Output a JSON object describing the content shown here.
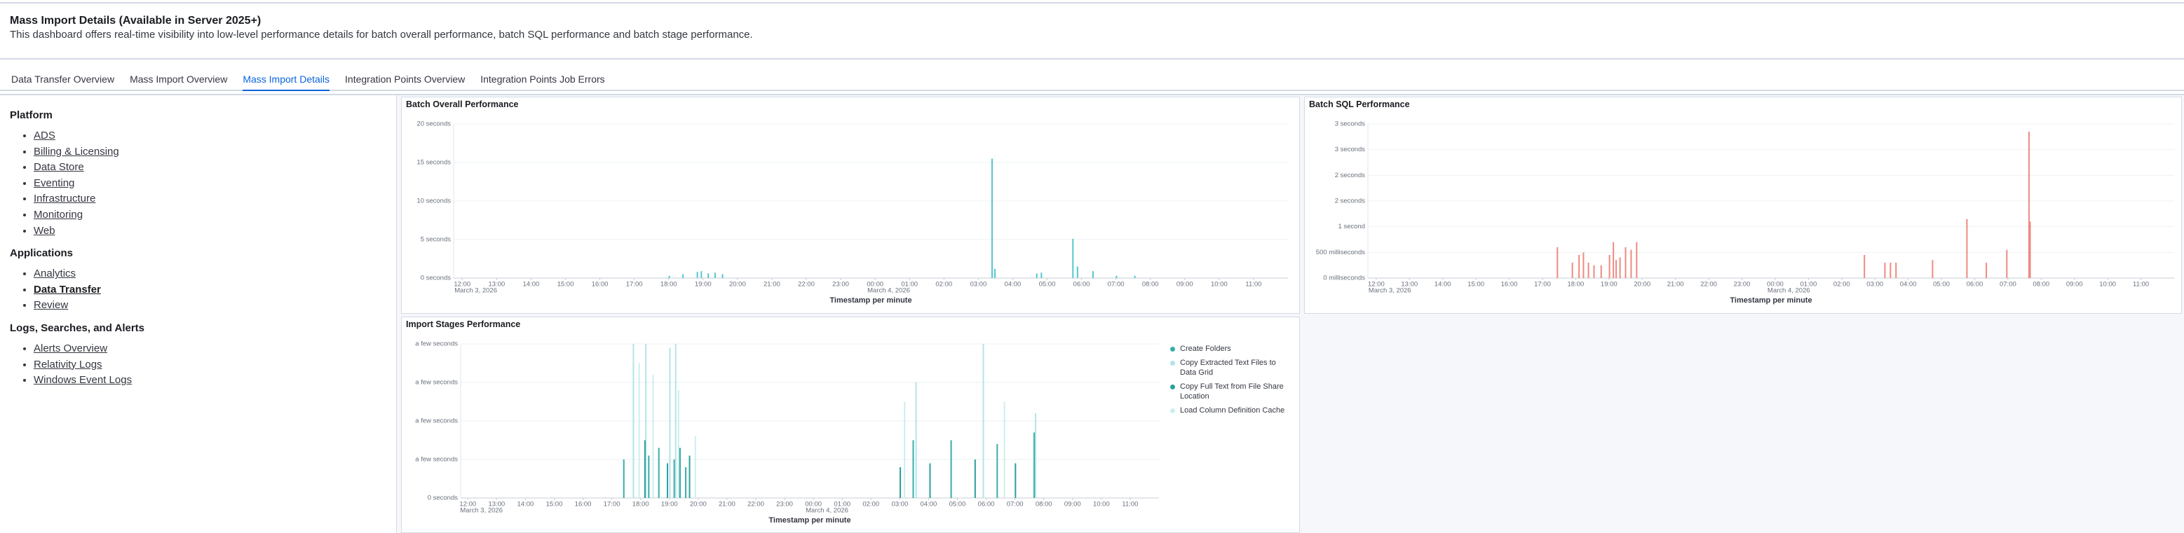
{
  "header": {
    "title": "Mass Import Details (Available in Server 2025+)",
    "description": "This dashboard offers real-time visibility into low-level performance details for batch overall performance, batch SQL performance and batch stage performance."
  },
  "tabs": {
    "items": [
      "Data Transfer Overview",
      "Mass Import Overview",
      "Mass Import Details",
      "Integration Points Overview",
      "Integration Points Job Errors"
    ],
    "active": 2
  },
  "sidebar": {
    "sections": [
      {
        "heading": "Platform",
        "links": [
          "ADS",
          "Billing & Licensing",
          "Data Store",
          "Eventing",
          "Infrastructure",
          "Monitoring",
          "Web"
        ]
      },
      {
        "heading": "Applications",
        "links": [
          "Analytics",
          "Data Transfer",
          "Review"
        ],
        "current": 1
      },
      {
        "heading": "Logs, Searches, and Alerts",
        "links": [
          "Alerts Overview",
          "Relativity Logs",
          "Windows Event Logs"
        ]
      }
    ]
  },
  "chart_data": [
    {
      "type": "bar",
      "title": "Batch Overall Performance",
      "x_label": "Timestamp per minute",
      "xlim": [
        "2026-03-03T11:45",
        "2026-03-04T12:00"
      ],
      "xticks": [
        {
          "value": "2026-03-03T12:00",
          "label": "12:00"
        },
        {
          "value": "2026-03-03T13:00",
          "label": "13:00"
        },
        {
          "value": "2026-03-03T14:00",
          "label": "14:00"
        },
        {
          "value": "2026-03-03T15:00",
          "label": "15:00"
        },
        {
          "value": "2026-03-03T16:00",
          "label": "16:00"
        },
        {
          "value": "2026-03-03T17:00",
          "label": "17:00"
        },
        {
          "value": "2026-03-03T18:00",
          "label": "18:00"
        },
        {
          "value": "2026-03-03T19:00",
          "label": "19:00"
        },
        {
          "value": "2026-03-03T20:00",
          "label": "20:00"
        },
        {
          "value": "2026-03-03T21:00",
          "label": "21:00"
        },
        {
          "value": "2026-03-03T22:00",
          "label": "22:00"
        },
        {
          "value": "2026-03-03T23:00",
          "label": "23:00"
        },
        {
          "value": "2026-03-04T00:00",
          "label": "00:00"
        },
        {
          "value": "2026-03-04T01:00",
          "label": "01:00"
        },
        {
          "value": "2026-03-04T02:00",
          "label": "02:00"
        },
        {
          "value": "2026-03-04T03:00",
          "label": "03:00"
        },
        {
          "value": "2026-03-04T04:00",
          "label": "04:00"
        },
        {
          "value": "2026-03-04T05:00",
          "label": "05:00"
        },
        {
          "value": "2026-03-04T06:00",
          "label": "06:00"
        },
        {
          "value": "2026-03-04T07:00",
          "label": "07:00"
        },
        {
          "value": "2026-03-04T08:00",
          "label": "08:00"
        },
        {
          "value": "2026-03-04T09:00",
          "label": "09:00"
        },
        {
          "value": "2026-03-04T10:00",
          "label": "10:00"
        },
        {
          "value": "2026-03-04T11:00",
          "label": "11:00"
        }
      ],
      "date_labels": [
        {
          "value": "2026-03-03T12:00",
          "label": "March 3, 2026"
        },
        {
          "value": "2026-03-04T00:00",
          "label": "March 4, 2026"
        }
      ],
      "ylim": [
        0,
        20
      ],
      "yticks": [
        {
          "value": 20,
          "label": "20 seconds"
        },
        {
          "value": 15,
          "label": "15 seconds"
        },
        {
          "value": 10,
          "label": "10 seconds"
        },
        {
          "value": 5,
          "label": "5 seconds"
        },
        {
          "value": 0,
          "label": "0 seconds"
        }
      ],
      "grid": true,
      "series": [
        {
          "color": "#54c7d1",
          "x": [
            "2026-03-03T18:01",
            "2026-03-03T18:25",
            "2026-03-03T18:50",
            "2026-03-03T18:57",
            "2026-03-03T19:09",
            "2026-03-03T19:21",
            "2026-03-03T19:34",
            "2026-03-04T03:24",
            "2026-03-04T03:29",
            "2026-03-04T04:42",
            "2026-03-04T04:50",
            "2026-03-04T05:45",
            "2026-03-04T05:53",
            "2026-03-04T06:20",
            "2026-03-04T07:01",
            "2026-03-04T07:33"
          ],
          "values": [
            0.3,
            0.5,
            0.8,
            0.9,
            0.6,
            0.7,
            0.5,
            15.5,
            1.2,
            0.6,
            0.7,
            5.1,
            1.5,
            0.9,
            0.3,
            0.3
          ]
        }
      ]
    },
    {
      "type": "bar",
      "title": "Batch SQL Performance",
      "x_label": "Timestamp per minute",
      "xlim": [
        "2026-03-03T11:45",
        "2026-03-04T12:00"
      ],
      "xticks": [
        {
          "value": "2026-03-03T12:00",
          "label": "12:00"
        },
        {
          "value": "2026-03-03T13:00",
          "label": "13:00"
        },
        {
          "value": "2026-03-03T14:00",
          "label": "14:00"
        },
        {
          "value": "2026-03-03T15:00",
          "label": "15:00"
        },
        {
          "value": "2026-03-03T16:00",
          "label": "16:00"
        },
        {
          "value": "2026-03-03T17:00",
          "label": "17:00"
        },
        {
          "value": "2026-03-03T18:00",
          "label": "18:00"
        },
        {
          "value": "2026-03-03T19:00",
          "label": "19:00"
        },
        {
          "value": "2026-03-03T20:00",
          "label": "20:00"
        },
        {
          "value": "2026-03-03T21:00",
          "label": "21:00"
        },
        {
          "value": "2026-03-03T22:00",
          "label": "22:00"
        },
        {
          "value": "2026-03-03T23:00",
          "label": "23:00"
        },
        {
          "value": "2026-03-04T00:00",
          "label": "00:00"
        },
        {
          "value": "2026-03-04T01:00",
          "label": "01:00"
        },
        {
          "value": "2026-03-04T02:00",
          "label": "02:00"
        },
        {
          "value": "2026-03-04T03:00",
          "label": "03:00"
        },
        {
          "value": "2026-03-04T04:00",
          "label": "04:00"
        },
        {
          "value": "2026-03-04T05:00",
          "label": "05:00"
        },
        {
          "value": "2026-03-04T06:00",
          "label": "06:00"
        },
        {
          "value": "2026-03-04T07:00",
          "label": "07:00"
        },
        {
          "value": "2026-03-04T08:00",
          "label": "08:00"
        },
        {
          "value": "2026-03-04T09:00",
          "label": "09:00"
        },
        {
          "value": "2026-03-04T10:00",
          "label": "10:00"
        },
        {
          "value": "2026-03-04T11:00",
          "label": "11:00"
        }
      ],
      "date_labels": [
        {
          "value": "2026-03-03T12:00",
          "label": "March 3, 2026"
        },
        {
          "value": "2026-03-04T00:00",
          "label": "March 4, 2026"
        }
      ],
      "ylim": [
        0,
        3
      ],
      "yticks": [
        {
          "value": 3,
          "label": "3 seconds"
        },
        {
          "value": 2.5,
          "label": "3 seconds"
        },
        {
          "value": 2,
          "label": "2 seconds"
        },
        {
          "value": 1.5,
          "label": "2 seconds"
        },
        {
          "value": 1,
          "label": "1 second"
        },
        {
          "value": 0.5,
          "label": "500 milliseconds"
        },
        {
          "value": 0,
          "label": "0 milliseconds"
        }
      ],
      "grid": true,
      "series": [
        {
          "color": "#ee8a80",
          "x": [
            "2026-03-03T17:27",
            "2026-03-03T17:54",
            "2026-03-03T18:06",
            "2026-03-03T18:14",
            "2026-03-03T18:23",
            "2026-03-03T18:33",
            "2026-03-03T18:46",
            "2026-03-03T19:01",
            "2026-03-03T19:08",
            "2026-03-03T19:13",
            "2026-03-03T19:20",
            "2026-03-03T19:30",
            "2026-03-03T19:40",
            "2026-03-03T19:50",
            "2026-03-04T02:41",
            "2026-03-04T03:18",
            "2026-03-04T03:28",
            "2026-03-04T03:38",
            "2026-03-04T04:44",
            "2026-03-04T05:46",
            "2026-03-04T06:21",
            "2026-03-04T06:58",
            "2026-03-04T07:38",
            "2026-03-04T07:40"
          ],
          "values": [
            0.6,
            0.3,
            0.45,
            0.5,
            0.3,
            0.25,
            0.25,
            0.45,
            0.7,
            0.35,
            0.4,
            0.6,
            0.55,
            0.7,
            0.45,
            0.3,
            0.3,
            0.3,
            0.35,
            1.15,
            0.3,
            0.55,
            2.85,
            1.1
          ]
        }
      ]
    },
    {
      "type": "bar",
      "title": "Import Stages Performance",
      "x_label": "Timestamp per minute",
      "xlim": [
        "2026-03-03T11:45",
        "2026-03-04T12:00"
      ],
      "xticks": [
        {
          "value": "2026-03-03T12:00",
          "label": "12:00"
        },
        {
          "value": "2026-03-03T13:00",
          "label": "13:00"
        },
        {
          "value": "2026-03-03T14:00",
          "label": "14:00"
        },
        {
          "value": "2026-03-03T15:00",
          "label": "15:00"
        },
        {
          "value": "2026-03-03T16:00",
          "label": "16:00"
        },
        {
          "value": "2026-03-03T17:00",
          "label": "17:00"
        },
        {
          "value": "2026-03-03T18:00",
          "label": "18:00"
        },
        {
          "value": "2026-03-03T19:00",
          "label": "19:00"
        },
        {
          "value": "2026-03-03T20:00",
          "label": "20:00"
        },
        {
          "value": "2026-03-03T21:00",
          "label": "21:00"
        },
        {
          "value": "2026-03-03T22:00",
          "label": "22:00"
        },
        {
          "value": "2026-03-03T23:00",
          "label": "23:00"
        },
        {
          "value": "2026-03-04T00:00",
          "label": "00:00"
        },
        {
          "value": "2026-03-04T01:00",
          "label": "01:00"
        },
        {
          "value": "2026-03-04T02:00",
          "label": "02:00"
        },
        {
          "value": "2026-03-04T03:00",
          "label": "03:00"
        },
        {
          "value": "2026-03-04T04:00",
          "label": "04:00"
        },
        {
          "value": "2026-03-04T05:00",
          "label": "05:00"
        },
        {
          "value": "2026-03-04T06:00",
          "label": "06:00"
        },
        {
          "value": "2026-03-04T07:00",
          "label": "07:00"
        },
        {
          "value": "2026-03-04T08:00",
          "label": "08:00"
        },
        {
          "value": "2026-03-04T09:00",
          "label": "09:00"
        },
        {
          "value": "2026-03-04T10:00",
          "label": "10:00"
        },
        {
          "value": "2026-03-04T11:00",
          "label": "11:00"
        }
      ],
      "date_labels": [
        {
          "value": "2026-03-03T12:00",
          "label": "March 3, 2026"
        },
        {
          "value": "2026-03-04T00:00",
          "label": "March 4, 2026"
        }
      ],
      "ylim": [
        0,
        4
      ],
      "yticks": [
        {
          "value": 4,
          "label": "a few seconds"
        },
        {
          "value": 3,
          "label": "a few seconds"
        },
        {
          "value": 2,
          "label": "a few seconds"
        },
        {
          "value": 1,
          "label": "a few seconds"
        },
        {
          "value": 0,
          "label": "0 seconds"
        }
      ],
      "grid": true,
      "legend": "right",
      "series": [
        {
          "name": "Create Folders",
          "color": "#36aeaa",
          "x": [
            "2026-03-03T17:25",
            "2026-03-03T18:17",
            "2026-03-03T18:38",
            "2026-03-03T19:10",
            "2026-03-03T19:34",
            "2026-03-04T03:28",
            "2026-03-04T04:47",
            "2026-03-04T06:23",
            "2026-03-04T07:40"
          ],
          "values": [
            1.0,
            1.1,
            1.3,
            1.0,
            0.8,
            1.5,
            1.5,
            1.4,
            1.7
          ]
        },
        {
          "name": "Copy Extracted Text Files to Data Grid",
          "color": "#b3e4e8",
          "x": [
            "2026-03-03T17:45",
            "2026-03-03T18:11",
            "2026-03-03T19:01",
            "2026-03-03T19:13",
            "2026-03-04T03:34",
            "2026-03-04T05:54",
            "2026-03-04T07:43"
          ],
          "values": [
            4,
            4,
            3.9,
            4,
            3,
            4,
            2.2
          ]
        },
        {
          "name": "Copy Full Text from File Share Location",
          "color": "#2a9f9c",
          "x": [
            "2026-03-03T18:09",
            "2026-03-03T18:26",
            "2026-03-03T18:56",
            "2026-03-03T19:22",
            "2026-03-03T19:42",
            "2026-03-04T03:01",
            "2026-03-04T04:03",
            "2026-03-04T05:37",
            "2026-03-04T07:01"
          ],
          "values": [
            1.5,
            1.2,
            0.9,
            1.3,
            1.1,
            0.8,
            0.9,
            1.0,
            0.9
          ]
        },
        {
          "name": "Load Column Definition Cache",
          "color": "#cdeef1",
          "x": [
            "2026-03-03T17:57",
            "2026-03-03T18:26",
            "2026-03-03T19:19",
            "2026-03-03T19:54",
            "2026-03-04T03:10",
            "2026-03-04T06:38"
          ],
          "values": [
            3.5,
            3.2,
            2.8,
            1.6,
            2.5,
            2.5
          ]
        }
      ]
    }
  ]
}
